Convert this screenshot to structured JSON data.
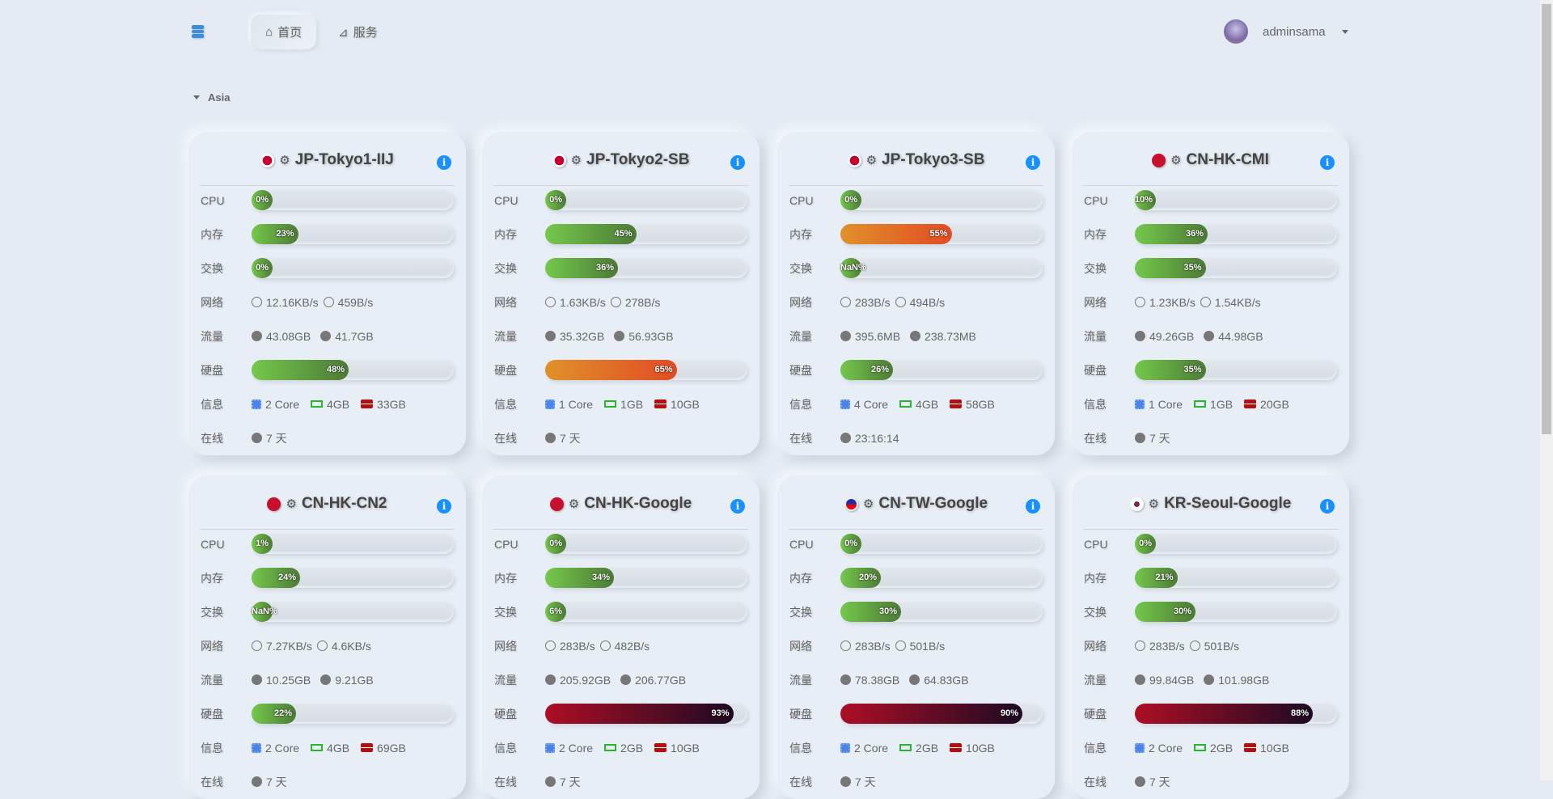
{
  "nav": {
    "tabs": [
      {
        "label": "首页",
        "icon": "home-icon"
      },
      {
        "label": "服务",
        "icon": "rss-icon"
      }
    ],
    "username": "adminsama"
  },
  "group": {
    "label": "Asia"
  },
  "labels": {
    "cpu": "CPU",
    "mem": "内存",
    "swap": "交换",
    "net": "网络",
    "traffic": "流量",
    "disk": "硬盘",
    "info": "信息",
    "uptime": "在线"
  },
  "colors": {
    "ok": "#74c84c",
    "warn": "#e14b24",
    "danger": "#ad0e25",
    "info": "#1890ff"
  },
  "servers": [
    {
      "name": "JP-Tokyo1-IIJ",
      "flag": "jp",
      "cpu": "0%",
      "cpu_v": 0,
      "mem": "23%",
      "mem_v": 23,
      "swap": "0%",
      "swap_v": 0,
      "net_in": "12.16KB/s",
      "net_out": "459B/s",
      "tr_in": "43.08GB",
      "tr_out": "41.7GB",
      "disk": "48%",
      "disk_v": 48,
      "cores": "2 Core",
      "ram": "4GB",
      "hdd": "33GB",
      "uptime": "7 天"
    },
    {
      "name": "JP-Tokyo2-SB",
      "flag": "jp",
      "cpu": "0%",
      "cpu_v": 0,
      "mem": "45%",
      "mem_v": 45,
      "swap": "36%",
      "swap_v": 36,
      "net_in": "1.63KB/s",
      "net_out": "278B/s",
      "tr_in": "35.32GB",
      "tr_out": "56.93GB",
      "disk": "65%",
      "disk_v": 65,
      "cores": "1 Core",
      "ram": "1GB",
      "hdd": "10GB",
      "uptime": "7 天"
    },
    {
      "name": "JP-Tokyo3-SB",
      "flag": "jp",
      "cpu": "0%",
      "cpu_v": 0,
      "mem": "55%",
      "mem_v": 55,
      "swap": "NaN%",
      "swap_v": 0,
      "net_in": "283B/s",
      "net_out": "494B/s",
      "tr_in": "395.6MB",
      "tr_out": "238.73MB",
      "disk": "26%",
      "disk_v": 26,
      "cores": "4 Core",
      "ram": "4GB",
      "hdd": "58GB",
      "uptime": "23:16:14"
    },
    {
      "name": "CN-HK-CMI",
      "flag": "hk",
      "cpu": "10%",
      "cpu_v": 10,
      "mem": "36%",
      "mem_v": 36,
      "swap": "35%",
      "swap_v": 35,
      "net_in": "1.23KB/s",
      "net_out": "1.54KB/s",
      "tr_in": "49.26GB",
      "tr_out": "44.98GB",
      "disk": "35%",
      "disk_v": 35,
      "cores": "1 Core",
      "ram": "1GB",
      "hdd": "20GB",
      "uptime": "7 天"
    },
    {
      "name": "CN-HK-CN2",
      "flag": "hk",
      "cpu": "1%",
      "cpu_v": 1,
      "mem": "24%",
      "mem_v": 24,
      "swap": "NaN%",
      "swap_v": 0,
      "net_in": "7.27KB/s",
      "net_out": "4.6KB/s",
      "tr_in": "10.25GB",
      "tr_out": "9.21GB",
      "disk": "22%",
      "disk_v": 22,
      "cores": "2 Core",
      "ram": "4GB",
      "hdd": "69GB",
      "uptime": "7 天"
    },
    {
      "name": "CN-HK-Google",
      "flag": "hk",
      "cpu": "0%",
      "cpu_v": 0,
      "mem": "34%",
      "mem_v": 34,
      "swap": "6%",
      "swap_v": 6,
      "net_in": "283B/s",
      "net_out": "482B/s",
      "tr_in": "205.92GB",
      "tr_out": "206.77GB",
      "disk": "93%",
      "disk_v": 93,
      "cores": "2 Core",
      "ram": "2GB",
      "hdd": "10GB",
      "uptime": "7 天"
    },
    {
      "name": "CN-TW-Google",
      "flag": "tw",
      "cpu": "0%",
      "cpu_v": 0,
      "mem": "20%",
      "mem_v": 20,
      "swap": "30%",
      "swap_v": 30,
      "net_in": "283B/s",
      "net_out": "501B/s",
      "tr_in": "78.38GB",
      "tr_out": "64.83GB",
      "disk": "90%",
      "disk_v": 90,
      "cores": "2 Core",
      "ram": "2GB",
      "hdd": "10GB",
      "uptime": "7 天"
    },
    {
      "name": "KR-Seoul-Google",
      "flag": "kr",
      "cpu": "0%",
      "cpu_v": 0,
      "mem": "21%",
      "mem_v": 21,
      "swap": "30%",
      "swap_v": 30,
      "net_in": "283B/s",
      "net_out": "501B/s",
      "tr_in": "99.84GB",
      "tr_out": "101.98GB",
      "disk": "88%",
      "disk_v": 88,
      "cores": "2 Core",
      "ram": "2GB",
      "hdd": "10GB",
      "uptime": "7 天"
    }
  ]
}
